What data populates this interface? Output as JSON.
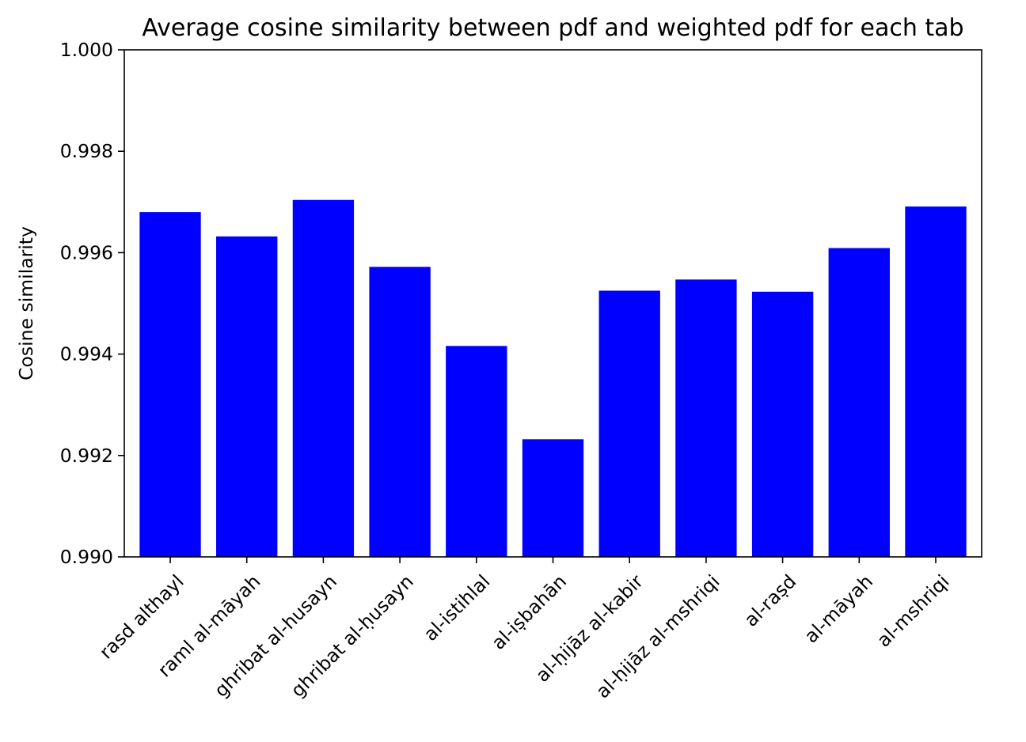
{
  "chart_data": {
    "type": "bar",
    "title": "Average cosine similarity between pdf and weighted pdf for each tab",
    "xlabel": "",
    "ylabel": "Cosine similarity",
    "ylim": [
      0.99,
      1.0
    ],
    "yticks": [
      "0.990",
      "0.992",
      "0.994",
      "0.996",
      "0.998",
      "1.000"
    ],
    "grid": false,
    "bar_color": "#0000ff",
    "x_tick_rotation_deg": 45,
    "categories": [
      "rasd althayl",
      "raml al-māyah",
      "ghribat al-husayn",
      "ghribat al-ḥusayn",
      "al-istihlal",
      "al-iṣbahān",
      "al-ḥijāz al-kabir",
      "al-ḥijāz al-mshriqi",
      "al-raṣd",
      "al-māyah",
      "al-mshriqi"
    ],
    "values": [
      0.9968,
      0.99632,
      0.99704,
      0.99572,
      0.99416,
      0.99232,
      0.99525,
      0.99547,
      0.99523,
      0.99609,
      0.99691
    ]
  }
}
